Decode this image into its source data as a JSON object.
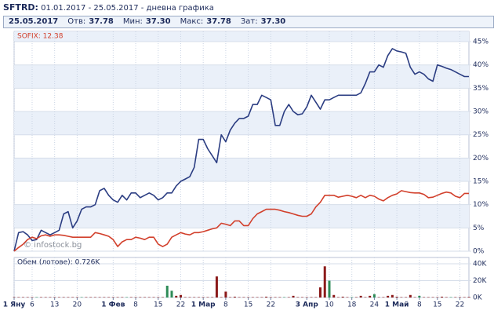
{
  "header": {
    "ticker": "SFTRD:",
    "period": "01.01.2017 - 25.05.2017 - дневна графика"
  },
  "info": {
    "date": "25.05.2017",
    "fields": [
      {
        "label": "Отв:",
        "value": "37.78"
      },
      {
        "label": "Мин:",
        "value": "37.30"
      },
      {
        "label": "Макс:",
        "value": "37.78"
      },
      {
        "label": "Зат:",
        "value": "37.30"
      }
    ]
  },
  "watermark": "© infostock.bg",
  "chart_data": [
    {
      "type": "line",
      "categories": [
        "1 Яну",
        null,
        null,
        null,
        "6",
        null,
        null,
        null,
        null,
        "13",
        null,
        null,
        null,
        null,
        "20",
        null,
        null,
        null,
        null,
        null,
        null,
        null,
        "1 Фев",
        null,
        null,
        null,
        null,
        "8",
        null,
        null,
        null,
        null,
        "15",
        null,
        null,
        null,
        null,
        "22",
        null,
        null,
        null,
        null,
        "1 Мар",
        null,
        null,
        null,
        null,
        "8",
        null,
        null,
        null,
        null,
        "15",
        null,
        null,
        null,
        null,
        "22",
        null,
        null,
        null,
        null,
        null,
        null,
        null,
        "3 Апр",
        null,
        null,
        null,
        null,
        "10",
        null,
        null,
        null,
        null,
        "18",
        null,
        null,
        null,
        null,
        "24",
        null,
        null,
        null,
        null,
        "1 Май",
        null,
        null,
        null,
        null,
        "8",
        null,
        null,
        null,
        "15",
        null,
        null,
        null,
        null,
        "22",
        null,
        null
      ],
      "series": [
        {
          "color": "#2b3d82",
          "values": [
            0,
            4,
            4.2,
            3.5,
            2.3,
            2.5,
            4.5,
            4,
            3.5,
            4,
            4.5,
            8,
            8.5,
            5,
            6.5,
            9,
            9.5,
            9.5,
            10,
            13,
            13.5,
            12,
            11,
            10.5,
            12,
            11,
            12.5,
            12.5,
            11.5,
            12,
            12.5,
            12,
            11,
            11.5,
            12.5,
            12.5,
            14,
            15,
            15.5,
            16,
            18,
            24,
            24,
            22,
            20.5,
            19,
            25,
            23.5,
            26,
            27.5,
            28.5,
            28.5,
            29,
            31.5,
            31.5,
            33.5,
            33,
            32.5,
            27,
            27,
            30,
            31.5,
            30,
            29.3,
            29.5,
            31,
            33.5,
            32,
            30.5,
            32.5,
            32.5,
            33,
            33.5,
            33.5,
            33.5,
            33.5,
            33.5,
            34,
            36,
            38.5,
            38.5,
            40,
            39.5,
            42,
            43.5,
            43,
            42.8,
            42.5,
            39.5,
            38,
            38.5,
            38,
            37,
            36.5,
            40,
            39.7,
            39.3,
            39,
            38.5,
            38,
            37.5,
            37.5
          ]
        },
        {
          "name": "SOFIX: 12.38",
          "color": "#d2402c",
          "values": [
            0,
            0.8,
            1.5,
            2.5,
            3,
            2.7,
            3.3,
            3.5,
            3.2,
            3.5,
            3.5,
            3.4,
            3.2,
            3,
            3,
            3,
            3,
            3,
            4,
            3.8,
            3.5,
            3.2,
            2.5,
            1,
            2,
            2.5,
            2.5,
            3,
            2.8,
            2.5,
            3,
            3,
            1.5,
            1,
            1.5,
            3,
            3.5,
            4,
            3.7,
            3.5,
            4,
            4,
            4.2,
            4.5,
            4.8,
            5,
            6,
            5.8,
            5.5,
            6.5,
            6.5,
            5.5,
            5.5,
            7,
            8,
            8.5,
            9,
            9,
            9,
            8.8,
            8.5,
            8.3,
            8,
            7.7,
            7.5,
            7.5,
            8,
            9.5,
            10.5,
            12,
            12,
            12,
            11.6,
            11.8,
            12,
            11.8,
            11.5,
            12,
            11.5,
            12,
            11.8,
            11.2,
            10.8,
            11.5,
            12,
            12.3,
            13,
            12.8,
            12.6,
            12.5,
            12.5,
            12.2,
            11.5,
            11.6,
            12,
            12.4,
            12.7,
            12.5,
            11.8,
            11.5,
            12.4,
            12.4
          ]
        }
      ],
      "ylim": [
        0,
        47.2
      ],
      "yticks": [
        {
          "value": 0,
          "label": "0%"
        },
        {
          "value": 5,
          "label": "5%"
        },
        {
          "value": 10,
          "label": "10%"
        },
        {
          "value": 15,
          "label": "15%"
        },
        {
          "value": 20,
          "label": "20%"
        },
        {
          "value": 25,
          "label": "25%"
        },
        {
          "value": 30,
          "label": "30%"
        },
        {
          "value": 35,
          "label": "35%"
        },
        {
          "value": 40,
          "label": "40%"
        },
        {
          "value": 45,
          "label": "45%"
        }
      ],
      "grid": true
    },
    {
      "type": "bar",
      "title": "Обем (лотове): 0.726K",
      "values": [
        0.5,
        0.5,
        0.5,
        0.5,
        0.5,
        0.5,
        0.5,
        0.5,
        0.5,
        0.5,
        0.5,
        0.5,
        0.5,
        0.5,
        0.5,
        0.5,
        0.5,
        0.5,
        0.5,
        0.5,
        0.5,
        0.5,
        0.5,
        0.5,
        0.5,
        0.5,
        0.5,
        0.5,
        0.5,
        0.5,
        0.5,
        0.5,
        0.5,
        0.5,
        14,
        8,
        2,
        3,
        0.5,
        0.5,
        0.5,
        0.5,
        0.5,
        0.5,
        0.5,
        25,
        0.5,
        7,
        0.5,
        1,
        0.5,
        0.5,
        0.5,
        0.5,
        0.5,
        0.5,
        1,
        0.5,
        0.5,
        0.5,
        0.5,
        0.5,
        2,
        0.5,
        0.5,
        0.5,
        0.5,
        0.5,
        12,
        37,
        20,
        3,
        0.5,
        1,
        0.5,
        0.5,
        0.5,
        2,
        0.5,
        2,
        4,
        0.5,
        0.5,
        2,
        3,
        1,
        0.5,
        0.5,
        3,
        0.5,
        2,
        0.5,
        0.5,
        0.5,
        0.5,
        1,
        0.5,
        0.5,
        0.5,
        0.5,
        0.5,
        0.726
      ],
      "colors": [
        "#8b1a1a",
        "#8b1a1a",
        "#8b1a1a",
        "#8b1a1a",
        "#8b1a1a",
        "#2e8b57",
        "#8b1a1a",
        "#8b1a1a",
        "#8b1a1a",
        "#8b1a1a",
        "#8b1a1a",
        "#8b1a1a",
        "#8b1a1a",
        "#8b1a1a",
        "#8b1a1a",
        "#2e8b57",
        "#8b1a1a",
        "#8b1a1a",
        "#8b1a1a",
        "#8b1a1a",
        "#8b1a1a",
        "#8b1a1a",
        "#8b1a1a",
        "#8b1a1a",
        "#8b1a1a",
        "#2e8b57",
        "#8b1a1a",
        "#8b1a1a",
        "#8b1a1a",
        "#8b1a1a",
        "#8b1a1a",
        "#8b1a1a",
        "#8b1a1a",
        "#8b1a1a",
        "#2e8b57",
        "#2e8b57",
        "#8b1a1a",
        "#8b1a1a",
        "#8b1a1a",
        "#8b1a1a",
        "#8b1a1a",
        "#8b1a1a",
        "#8b1a1a",
        "#8b1a1a",
        "#8b1a1a",
        "#8b1a1a",
        "#8b1a1a",
        "#8b1a1a",
        "#8b1a1a",
        "#8b1a1a",
        "#8b1a1a",
        "#8b1a1a",
        "#8b1a1a",
        "#8b1a1a",
        "#8b1a1a",
        "#8b1a1a",
        "#8b1a1a",
        "#8b1a1a",
        "#8b1a1a",
        "#8b1a1a",
        "#2e8b57",
        "#8b1a1a",
        "#8b1a1a",
        "#8b1a1a",
        "#8b1a1a",
        "#8b1a1a",
        "#8b1a1a",
        "#8b1a1a",
        "#8b1a1a",
        "#8b1a1a",
        "#2e8b57",
        "#8b1a1a",
        "#8b1a1a",
        "#8b1a1a",
        "#8b1a1a",
        "#2e8b57",
        "#8b1a1a",
        "#8b1a1a",
        "#8b1a1a",
        "#8b1a1a",
        "#2e8b57",
        "#8b1a1a",
        "#8b1a1a",
        "#8b1a1a",
        "#8b1a1a",
        "#8b1a1a",
        "#8b1a1a",
        "#8b1a1a",
        "#8b1a1a",
        "#8b1a1a",
        "#2e8b57",
        "#8b1a1a",
        "#8b1a1a",
        "#8b1a1a",
        "#8b1a1a",
        "#8b1a1a",
        "#8b1a1a",
        "#2e8b57",
        "#8b1a1a",
        "#8b1a1a",
        "#8b1a1a",
        "#8b1a1a"
      ],
      "ylim": [
        0,
        47.5
      ],
      "yticks": [
        {
          "value": 0,
          "label": "0K"
        },
        {
          "value": 20,
          "label": "20K"
        },
        {
          "value": 40,
          "label": "40K"
        }
      ]
    }
  ]
}
